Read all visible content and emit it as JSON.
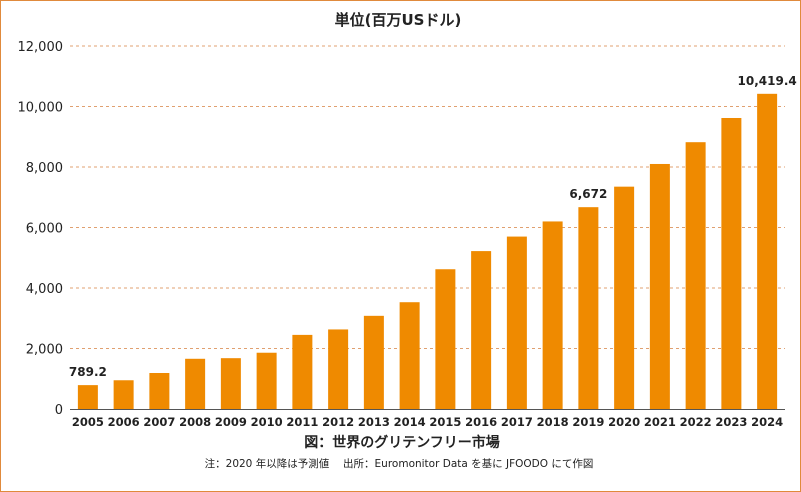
{
  "chart_data": {
    "type": "bar",
    "unit_label": "単位(百万USドル)",
    "categories": [
      "2005",
      "2006",
      "2007",
      "2008",
      "2009",
      "2010",
      "2011",
      "2012",
      "2013",
      "2014",
      "2015",
      "2016",
      "2017",
      "2018",
      "2019",
      "2020",
      "2021",
      "2022",
      "2023",
      "2024"
    ],
    "values": [
      789.2,
      950,
      1190,
      1660,
      1680,
      1860,
      2450,
      2630,
      3080,
      3530,
      4620,
      5220,
      5700,
      6200,
      6672,
      7350,
      8100,
      8820,
      9620,
      10419.4
    ],
    "data_labels": [
      {
        "category": "2005",
        "text": "789.2"
      },
      {
        "category": "2019",
        "text": "6,672"
      },
      {
        "category": "2024",
        "text": "10,419.4"
      }
    ],
    "ylim": [
      0,
      12000
    ],
    "yticks": [
      0,
      2000,
      4000,
      6000,
      8000,
      10000,
      12000
    ],
    "ytick_labels": [
      "0",
      "2,000",
      "4,000",
      "6,000",
      "8,000",
      "10,000",
      "12,000"
    ],
    "bar_color": "#ef8a00",
    "grid": true,
    "title": "図：世界のグリテンフリー市場",
    "note": "注：2020 年以降は予測値　 出所：Euromonitor Data を基に JFOODO にて作図"
  }
}
